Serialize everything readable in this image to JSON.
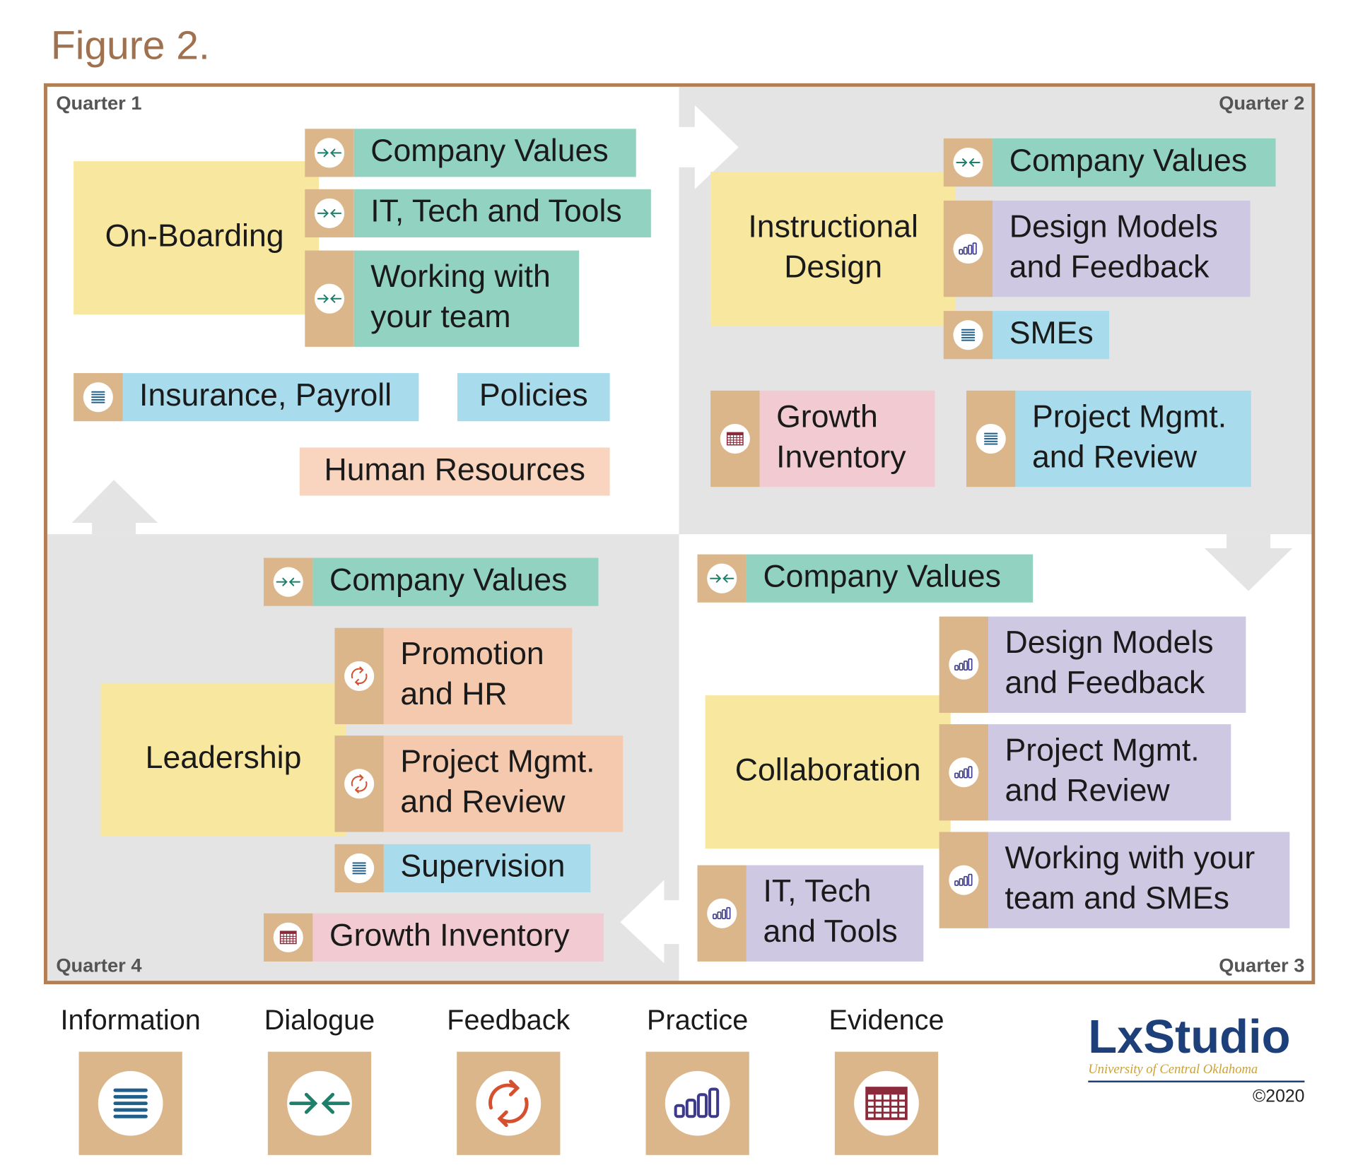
{
  "title": "Figure 2.",
  "quarters": [
    {
      "label": "Quarter 1",
      "hub": [
        "On-Boarding"
      ],
      "items": [
        {
          "lines": [
            "Company Values"
          ]
        },
        {
          "lines": [
            "IT, Tech and Tools"
          ]
        },
        {
          "lines": [
            "Working with",
            "your team"
          ]
        },
        {
          "lines": [
            "Insurance, Payroll"
          ]
        },
        {
          "lines": [
            "Policies"
          ]
        },
        {
          "lines": [
            "Human Resources"
          ]
        }
      ]
    },
    {
      "label": "Quarter 2",
      "hub": [
        "Instructional",
        "Design"
      ],
      "items": [
        {
          "lines": [
            "Company Values"
          ]
        },
        {
          "lines": [
            "Design Models",
            "and Feedback"
          ]
        },
        {
          "lines": [
            "SMEs"
          ]
        },
        {
          "lines": [
            "Growth",
            "Inventory"
          ]
        },
        {
          "lines": [
            "Project Mgmt.",
            "and Review"
          ]
        }
      ]
    },
    {
      "label": "Quarter 3",
      "hub": [
        "Collaboration"
      ],
      "items": [
        {
          "lines": [
            "Company Values"
          ]
        },
        {
          "lines": [
            "Design Models",
            "and Feedback"
          ]
        },
        {
          "lines": [
            "Project Mgmt.",
            "and Review"
          ]
        },
        {
          "lines": [
            "Working with your",
            "team and SMEs"
          ]
        },
        {
          "lines": [
            "IT, Tech",
            "and Tools"
          ]
        }
      ]
    },
    {
      "label": "Quarter 4",
      "hub": [
        "Leadership"
      ],
      "items": [
        {
          "lines": [
            "Company Values"
          ]
        },
        {
          "lines": [
            "Promotion",
            "and HR"
          ]
        },
        {
          "lines": [
            "Project Mgmt.",
            "and Review"
          ]
        },
        {
          "lines": [
            "Supervision"
          ]
        },
        {
          "lines": [
            "Growth Inventory"
          ]
        }
      ]
    }
  ],
  "legend": [
    "Information",
    "Dialogue",
    "Feedback",
    "Practice",
    "Evidence"
  ],
  "logo": {
    "name": "LxStudio",
    "subtitle": "University of Central Oklahoma",
    "copyright": "©2020"
  }
}
